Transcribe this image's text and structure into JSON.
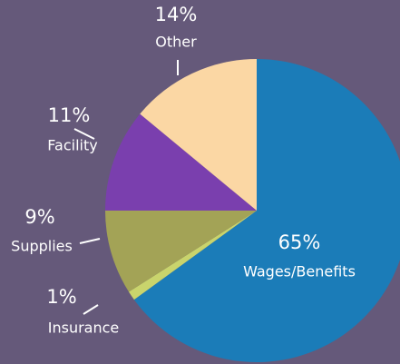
{
  "chart_data": {
    "type": "pie",
    "categories": [
      "Wages/Benefits",
      "Insurance",
      "Supplies",
      "Facility",
      "Other"
    ],
    "values": [
      65,
      1,
      9,
      11,
      14
    ],
    "value_labels": [
      "65%",
      "1%",
      "9%",
      "11%",
      "14%"
    ],
    "colors": [
      "#1b7cb8",
      "#c9d46c",
      "#a3a356",
      "#7a3fae",
      "#fbd7a4"
    ]
  }
}
